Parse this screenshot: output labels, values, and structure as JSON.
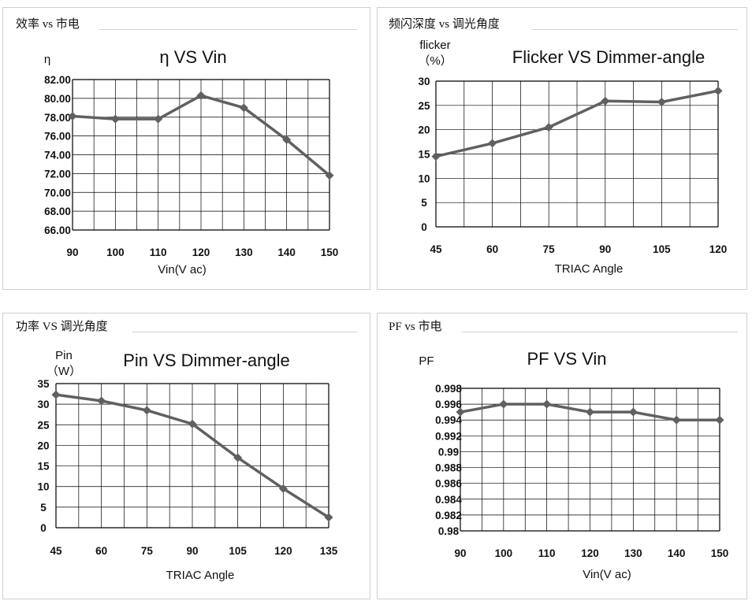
{
  "panels": [
    {
      "title": "效率 vs 市电"
    },
    {
      "title": "频闪深度 vs 调光角度"
    },
    {
      "title": "功率 VS 调光角度"
    },
    {
      "title": "PF vs 市电"
    }
  ],
  "chart_data": [
    {
      "type": "line",
      "title": "η  VS Vin",
      "ylabel_lines": [
        "η"
      ],
      "xlabel": "Vin(V ac)",
      "x": [
        90,
        100,
        110,
        120,
        130,
        140,
        150
      ],
      "series": [
        {
          "values": [
            78.1,
            77.8,
            77.8,
            80.3,
            79.0,
            75.6,
            71.8
          ]
        }
      ],
      "ylim": [
        66,
        82
      ],
      "yticks": [
        "82.00",
        "80.00",
        "78.00",
        "76.00",
        "74.00",
        "72.00",
        "70.00",
        "68.00",
        "66.00"
      ],
      "grid": true,
      "colors": {
        "line": "#606060",
        "marker": "#606060",
        "grid": "#000000"
      }
    },
    {
      "type": "line",
      "title": "Flicker  VS Dimmer-angle",
      "ylabel_lines": [
        "flicker",
        "（%）"
      ],
      "xlabel": "TRIAC Angle",
      "x": [
        45,
        60,
        75,
        90,
        105,
        120
      ],
      "series": [
        {
          "values": [
            14.5,
            17.2,
            20.5,
            25.9,
            25.7,
            28.0
          ]
        }
      ],
      "ylim": [
        0,
        30
      ],
      "yticks": [
        "30",
        "25",
        "20",
        "15",
        "10",
        "5",
        "0"
      ],
      "grid": true,
      "colors": {
        "line": "#606060",
        "marker": "#606060",
        "grid": "#000000"
      }
    },
    {
      "type": "line",
      "title": "Pin  VS  Dimmer-angle",
      "ylabel_lines": [
        "Pin",
        "（W）"
      ],
      "xlabel": "TRIAC Angle",
      "x": [
        45,
        60,
        75,
        90,
        105,
        120,
        135
      ],
      "series": [
        {
          "values": [
            32.3,
            30.8,
            28.5,
            25.2,
            17.0,
            9.5,
            2.5
          ]
        }
      ],
      "ylim": [
        0,
        35
      ],
      "yticks": [
        "35",
        "30",
        "25",
        "20",
        "15",
        "10",
        "5",
        "0"
      ],
      "grid": true,
      "colors": {
        "line": "#606060",
        "marker": "#606060",
        "grid": "#000000"
      }
    },
    {
      "type": "line",
      "title": "PF  VS Vin",
      "ylabel_lines": [
        "PF"
      ],
      "xlabel": "Vin(V ac)",
      "x": [
        90,
        100,
        110,
        120,
        130,
        140,
        150
      ],
      "series": [
        {
          "values": [
            0.995,
            0.996,
            0.996,
            0.995,
            0.995,
            0.994,
            0.994
          ]
        }
      ],
      "ylim": [
        0.98,
        0.998
      ],
      "yticks": [
        "0.998",
        "0.996",
        "0.994",
        "0.992",
        "0.99",
        "0.988",
        "0.986",
        "0.984",
        "0.982",
        "0.98"
      ],
      "grid": true,
      "colors": {
        "line": "#606060",
        "marker": "#606060",
        "grid": "#000000"
      }
    }
  ]
}
